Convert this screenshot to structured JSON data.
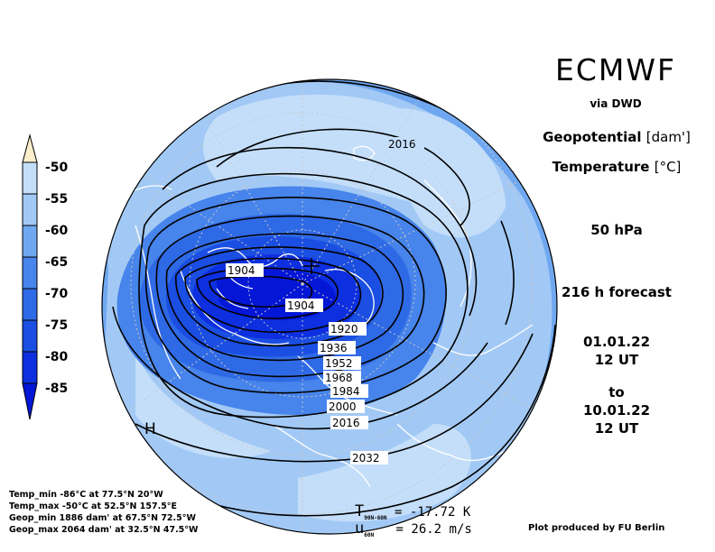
{
  "header": {
    "brand": "ECMWF",
    "via": "via DWD",
    "field1_name": "Geopotential",
    "field1_unit": "[dam']",
    "field2_name": "Temperature",
    "field2_unit": "[°C]",
    "level": "50 hPa",
    "forecast": "216 h forecast",
    "init_date": "01.01.22",
    "init_time": "12 UT",
    "to": "to",
    "valid_date": "10.01.22",
    "valid_time": "12 UT"
  },
  "colorbar": {
    "labels": [
      "-50",
      "-55",
      "-60",
      "-65",
      "-70",
      "-75",
      "-80",
      "-85"
    ],
    "colors": {
      "c_top": "#fbeecb",
      "c_m50": "#c4defa",
      "c_m55": "#a2c9f5",
      "c_m60": "#6fa8f0",
      "c_m65": "#4784eb",
      "c_m70": "#2f6ae6",
      "c_m75": "#1b4ee2",
      "c_m80": "#0d2fe0",
      "c_m85": "#0416d6"
    }
  },
  "map": {
    "contour_labels": [
      "2016",
      "1904",
      "1904",
      "1920",
      "1936",
      "1952",
      "1968",
      "1984",
      "2000",
      "2016",
      "2032"
    ],
    "pressure_marks": [
      "H"
    ]
  },
  "stats": {
    "temp_min": "Temp_min -86°C at 77.5°N 20°W",
    "temp_max": "Temp_max -50°C at 52.5°N 157.5°E",
    "geop_min": "Geop_min 1886 dam' at 67.5°N 72.5°W",
    "geop_max": "Geop_max 2064 dam' at 32.5°N 47.5°W"
  },
  "bottom": {
    "t_symbol": "T",
    "t_sub": "90N-60N",
    "t_value": "=  -17.72 K",
    "u_symbol": "u",
    "u_sub": "60N",
    "u_value": "=  26.2 m/s",
    "credit": "Plot produced by FU Berlin"
  }
}
